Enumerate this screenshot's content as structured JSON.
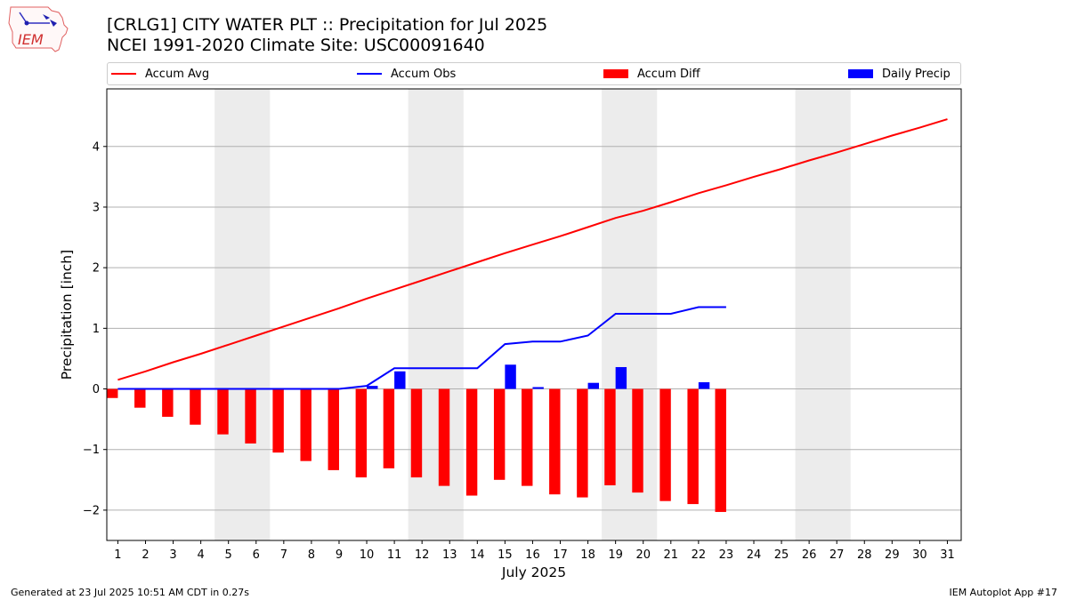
{
  "header": {
    "title": "[CRLG1] CITY WATER PLT :: Precipitation for Jul 2025",
    "subtitle": "NCEI 1991-2020 Climate Site: USC00091640",
    "logo_text": "IEM"
  },
  "footer": {
    "generated": "Generated at 23 Jul 2025 10:51 AM CDT in 0.27s",
    "app": "IEM Autoplot App #17"
  },
  "legend": {
    "placement": "top",
    "items": [
      {
        "label": "Accum Avg",
        "kind": "line",
        "color": "#ff0000"
      },
      {
        "label": "Accum Obs",
        "kind": "line",
        "color": "#0000ff"
      },
      {
        "label": "Accum Diff",
        "kind": "bar",
        "color": "#ff0000"
      },
      {
        "label": "Daily Precip",
        "kind": "bar",
        "color": "#0000ff"
      }
    ]
  },
  "chart_data": {
    "type": "bar",
    "xlabel": "July 2025",
    "ylabel": "Precipitation [inch]",
    "xlim": [
      0.6,
      31.5
    ],
    "ylim": [
      -2.5,
      4.95
    ],
    "y_ticks": [
      -2,
      -1,
      0,
      1,
      2,
      3,
      4
    ],
    "y_tick_labels": [
      "−2",
      "−1",
      "0",
      "1",
      "2",
      "3",
      "4"
    ],
    "x_ticks": [
      1,
      2,
      3,
      4,
      5,
      6,
      7,
      8,
      9,
      10,
      11,
      12,
      13,
      14,
      15,
      16,
      17,
      18,
      19,
      20,
      21,
      22,
      23,
      24,
      25,
      26,
      27,
      28,
      29,
      30,
      31
    ],
    "grid": "horizontal",
    "weekend_shading": [
      [
        4.5,
        6.5
      ],
      [
        11.5,
        13.5
      ],
      [
        18.5,
        20.5
      ],
      [
        25.5,
        27.5
      ]
    ],
    "colors": {
      "avg": "#ff0000",
      "obs": "#0000ff",
      "diff": "#ff0000",
      "daily": "#0000ff",
      "weekend": "#ececec"
    },
    "series": [
      {
        "name": "Accum Avg",
        "type": "line",
        "days": [
          1,
          2,
          3,
          4,
          5,
          6,
          7,
          8,
          9,
          10,
          11,
          12,
          13,
          14,
          15,
          16,
          17,
          18,
          19,
          20,
          21,
          22,
          23,
          24,
          25,
          26,
          27,
          28,
          29,
          30,
          31
        ],
        "values": [
          0.15,
          0.29,
          0.44,
          0.58,
          0.73,
          0.88,
          1.03,
          1.18,
          1.33,
          1.49,
          1.64,
          1.79,
          1.94,
          2.09,
          2.24,
          2.38,
          2.52,
          2.67,
          2.82,
          2.94,
          3.08,
          3.23,
          3.36,
          3.5,
          3.63,
          3.77,
          3.9,
          4.04,
          4.18,
          4.31,
          4.45
        ]
      },
      {
        "name": "Accum Obs",
        "type": "line",
        "days": [
          1,
          2,
          3,
          4,
          5,
          6,
          7,
          8,
          9,
          10,
          11,
          12,
          13,
          14,
          15,
          16,
          17,
          18,
          19,
          20,
          21,
          22,
          23
        ],
        "values": [
          0,
          0,
          0,
          0,
          0,
          0,
          0,
          0,
          0,
          0.05,
          0.34,
          0.34,
          0.34,
          0.34,
          0.74,
          0.78,
          0.78,
          0.88,
          1.24,
          1.24,
          1.24,
          1.35,
          1.35
        ]
      },
      {
        "name": "Accum Diff",
        "type": "bar",
        "days": [
          1,
          2,
          3,
          4,
          5,
          6,
          7,
          8,
          9,
          10,
          11,
          12,
          13,
          14,
          15,
          16,
          17,
          18,
          19,
          20,
          21,
          22,
          23
        ],
        "values": [
          -0.15,
          -0.31,
          -0.46,
          -0.59,
          -0.75,
          -0.9,
          -1.05,
          -1.19,
          -1.34,
          -1.46,
          -1.31,
          -1.46,
          -1.6,
          -1.76,
          -1.5,
          -1.6,
          -1.74,
          -1.79,
          -1.59,
          -1.71,
          -1.85,
          -1.9,
          -2.03
        ]
      },
      {
        "name": "Daily Precip",
        "type": "bar",
        "days": [
          10,
          11,
          15,
          16,
          18,
          19,
          22
        ],
        "values": [
          0.05,
          0.29,
          0.4,
          0.03,
          0.1,
          0.36,
          0.11
        ]
      }
    ]
  }
}
